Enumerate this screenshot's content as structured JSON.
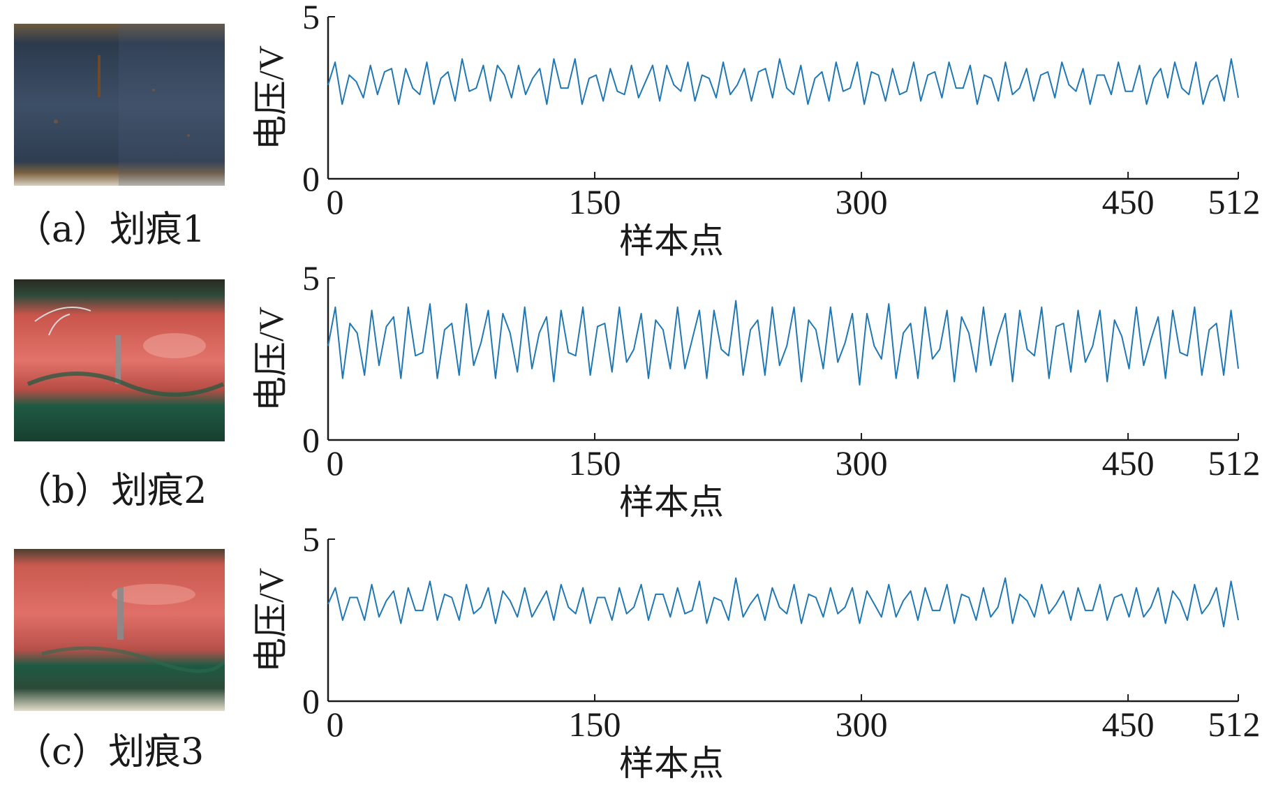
{
  "figure": {
    "panels": [
      {
        "caption": "（a）划痕1"
      },
      {
        "caption": "（b）划痕2"
      },
      {
        "caption": "（c）划痕3"
      }
    ]
  },
  "colors": {
    "line": "#1f77b4",
    "axis": "#1a1a1a"
  },
  "chart_data": [
    {
      "type": "line",
      "panel": "a",
      "xlabel": "样本点",
      "ylabel": "电压/V",
      "xlim": [
        0,
        512
      ],
      "ylim": [
        0,
        5
      ],
      "xticks": [
        0,
        150,
        300,
        450,
        512
      ],
      "yticks": [
        0,
        5
      ],
      "grid": false,
      "sampling": "every 4th sample of a 512-sample signal",
      "series": [
        {
          "values": [
            2.9,
            3.6,
            2.3,
            3.2,
            3.0,
            2.5,
            3.5,
            2.6,
            3.3,
            3.4,
            2.3,
            3.4,
            2.8,
            2.6,
            3.6,
            2.3,
            3.1,
            3.3,
            2.4,
            3.7,
            2.7,
            2.8,
            3.5,
            2.4,
            3.5,
            3.2,
            2.5,
            3.5,
            2.6,
            3.1,
            3.4,
            2.3,
            3.7,
            2.8,
            2.8,
            3.7,
            2.3,
            3.1,
            3.2,
            2.4,
            3.4,
            2.7,
            2.6,
            3.5,
            2.5,
            3.0,
            3.5,
            2.4,
            3.5,
            2.9,
            2.7,
            3.6,
            2.4,
            3.2,
            3.1,
            2.5,
            3.6,
            2.6,
            2.9,
            3.4,
            2.4,
            3.3,
            3.4,
            2.5,
            3.7,
            2.8,
            2.6,
            3.5,
            2.3,
            3.1,
            3.3,
            2.4,
            3.6,
            2.7,
            2.8,
            3.6,
            2.3,
            3.3,
            3.2,
            2.4,
            3.4,
            2.6,
            2.7,
            3.6,
            2.4,
            3.2,
            3.3,
            2.5,
            3.6,
            2.8,
            2.8,
            3.5,
            2.3,
            3.2,
            3.1,
            2.4,
            3.6,
            2.6,
            2.8,
            3.4,
            2.4,
            3.2,
            3.3,
            2.5,
            3.6,
            2.9,
            2.7,
            3.4,
            2.3,
            3.2,
            3.2,
            2.6,
            3.6,
            2.7,
            2.7,
            3.5,
            2.3,
            3.1,
            3.4,
            2.5,
            3.6,
            2.8,
            2.6,
            3.6,
            2.3,
            3.0,
            3.2,
            2.4,
            3.7,
            2.5
          ]
        }
      ]
    },
    {
      "type": "line",
      "panel": "b",
      "xlabel": "样本点",
      "ylabel": "电压/V",
      "xlim": [
        0,
        512
      ],
      "ylim": [
        0,
        5
      ],
      "xticks": [
        0,
        150,
        300,
        450,
        512
      ],
      "yticks": [
        0,
        5
      ],
      "grid": false,
      "sampling": "every 4th sample of a 512-sample signal",
      "series": [
        {
          "values": [
            2.9,
            4.1,
            1.9,
            3.6,
            3.3,
            2.0,
            4.0,
            2.3,
            3.5,
            3.8,
            1.9,
            4.1,
            2.6,
            2.7,
            4.2,
            1.9,
            3.4,
            3.6,
            2.0,
            4.2,
            2.3,
            3.0,
            4.0,
            1.9,
            3.9,
            3.3,
            2.1,
            4.1,
            2.2,
            3.3,
            3.8,
            1.8,
            4.0,
            2.7,
            2.6,
            4.1,
            2.0,
            3.5,
            3.6,
            2.1,
            4.1,
            2.4,
            2.8,
            3.9,
            1.9,
            3.7,
            3.4,
            2.2,
            4.1,
            2.2,
            3.1,
            4.0,
            1.9,
            4.0,
            2.8,
            2.6,
            4.3,
            2.0,
            3.4,
            3.7,
            2.0,
            4.1,
            2.3,
            2.9,
            4.1,
            1.8,
            3.7,
            3.4,
            2.2,
            4.1,
            2.4,
            3.0,
            3.9,
            1.7,
            3.9,
            2.9,
            2.5,
            4.2,
            1.9,
            3.3,
            3.6,
            1.9,
            4.1,
            2.5,
            2.8,
            4.0,
            1.8,
            3.8,
            3.3,
            2.1,
            4.1,
            2.3,
            3.2,
            3.9,
            1.8,
            4.0,
            2.8,
            2.6,
            4.1,
            1.9,
            3.5,
            3.6,
            2.1,
            4.0,
            2.4,
            2.9,
            4.0,
            1.8,
            3.7,
            3.2,
            2.2,
            4.1,
            2.3,
            3.1,
            3.8,
            1.9,
            4.0,
            2.7,
            2.6,
            4.1,
            2.0,
            3.4,
            3.6,
            2.0,
            4.0,
            2.2
          ]
        }
      ]
    },
    {
      "type": "line",
      "panel": "c",
      "xlabel": "样本点",
      "ylabel": "电压/V",
      "xlim": [
        0,
        512
      ],
      "ylim": [
        0,
        5
      ],
      "xticks": [
        0,
        150,
        300,
        450,
        512
      ],
      "yticks": [
        0,
        5
      ],
      "grid": false,
      "sampling": "every 4th sample of a 512-sample signal",
      "series": [
        {
          "values": [
            3.0,
            3.5,
            2.5,
            3.2,
            3.2,
            2.5,
            3.6,
            2.6,
            3.1,
            3.4,
            2.4,
            3.5,
            2.8,
            2.8,
            3.7,
            2.5,
            3.3,
            3.2,
            2.5,
            3.6,
            2.7,
            2.9,
            3.5,
            2.4,
            3.4,
            3.1,
            2.6,
            3.5,
            2.6,
            3.0,
            3.4,
            2.5,
            3.6,
            2.9,
            2.7,
            3.5,
            2.4,
            3.2,
            3.2,
            2.5,
            3.5,
            2.7,
            2.9,
            3.6,
            2.5,
            3.3,
            3.3,
            2.6,
            3.5,
            2.7,
            2.8,
            3.7,
            2.4,
            3.2,
            3.1,
            2.5,
            3.8,
            2.6,
            3.0,
            3.3,
            2.5,
            3.5,
            2.9,
            2.7,
            3.6,
            2.4,
            3.3,
            3.2,
            2.6,
            3.5,
            2.7,
            2.9,
            3.5,
            2.4,
            3.4,
            3.0,
            2.6,
            3.6,
            2.6,
            3.1,
            3.4,
            2.5,
            3.5,
            2.8,
            2.8,
            3.6,
            2.4,
            3.3,
            3.2,
            2.5,
            3.5,
            2.6,
            2.9,
            3.8,
            2.4,
            3.3,
            3.1,
            2.6,
            3.6,
            2.7,
            3.0,
            3.4,
            2.5,
            3.5,
            2.8,
            2.8,
            3.6,
            2.5,
            3.2,
            3.3,
            2.6,
            3.5,
            2.6,
            2.9,
            3.5,
            2.4,
            3.4,
            3.1,
            2.5,
            3.6,
            2.7,
            3.0,
            3.5,
            2.3,
            3.7,
            2.5
          ]
        }
      ]
    }
  ]
}
